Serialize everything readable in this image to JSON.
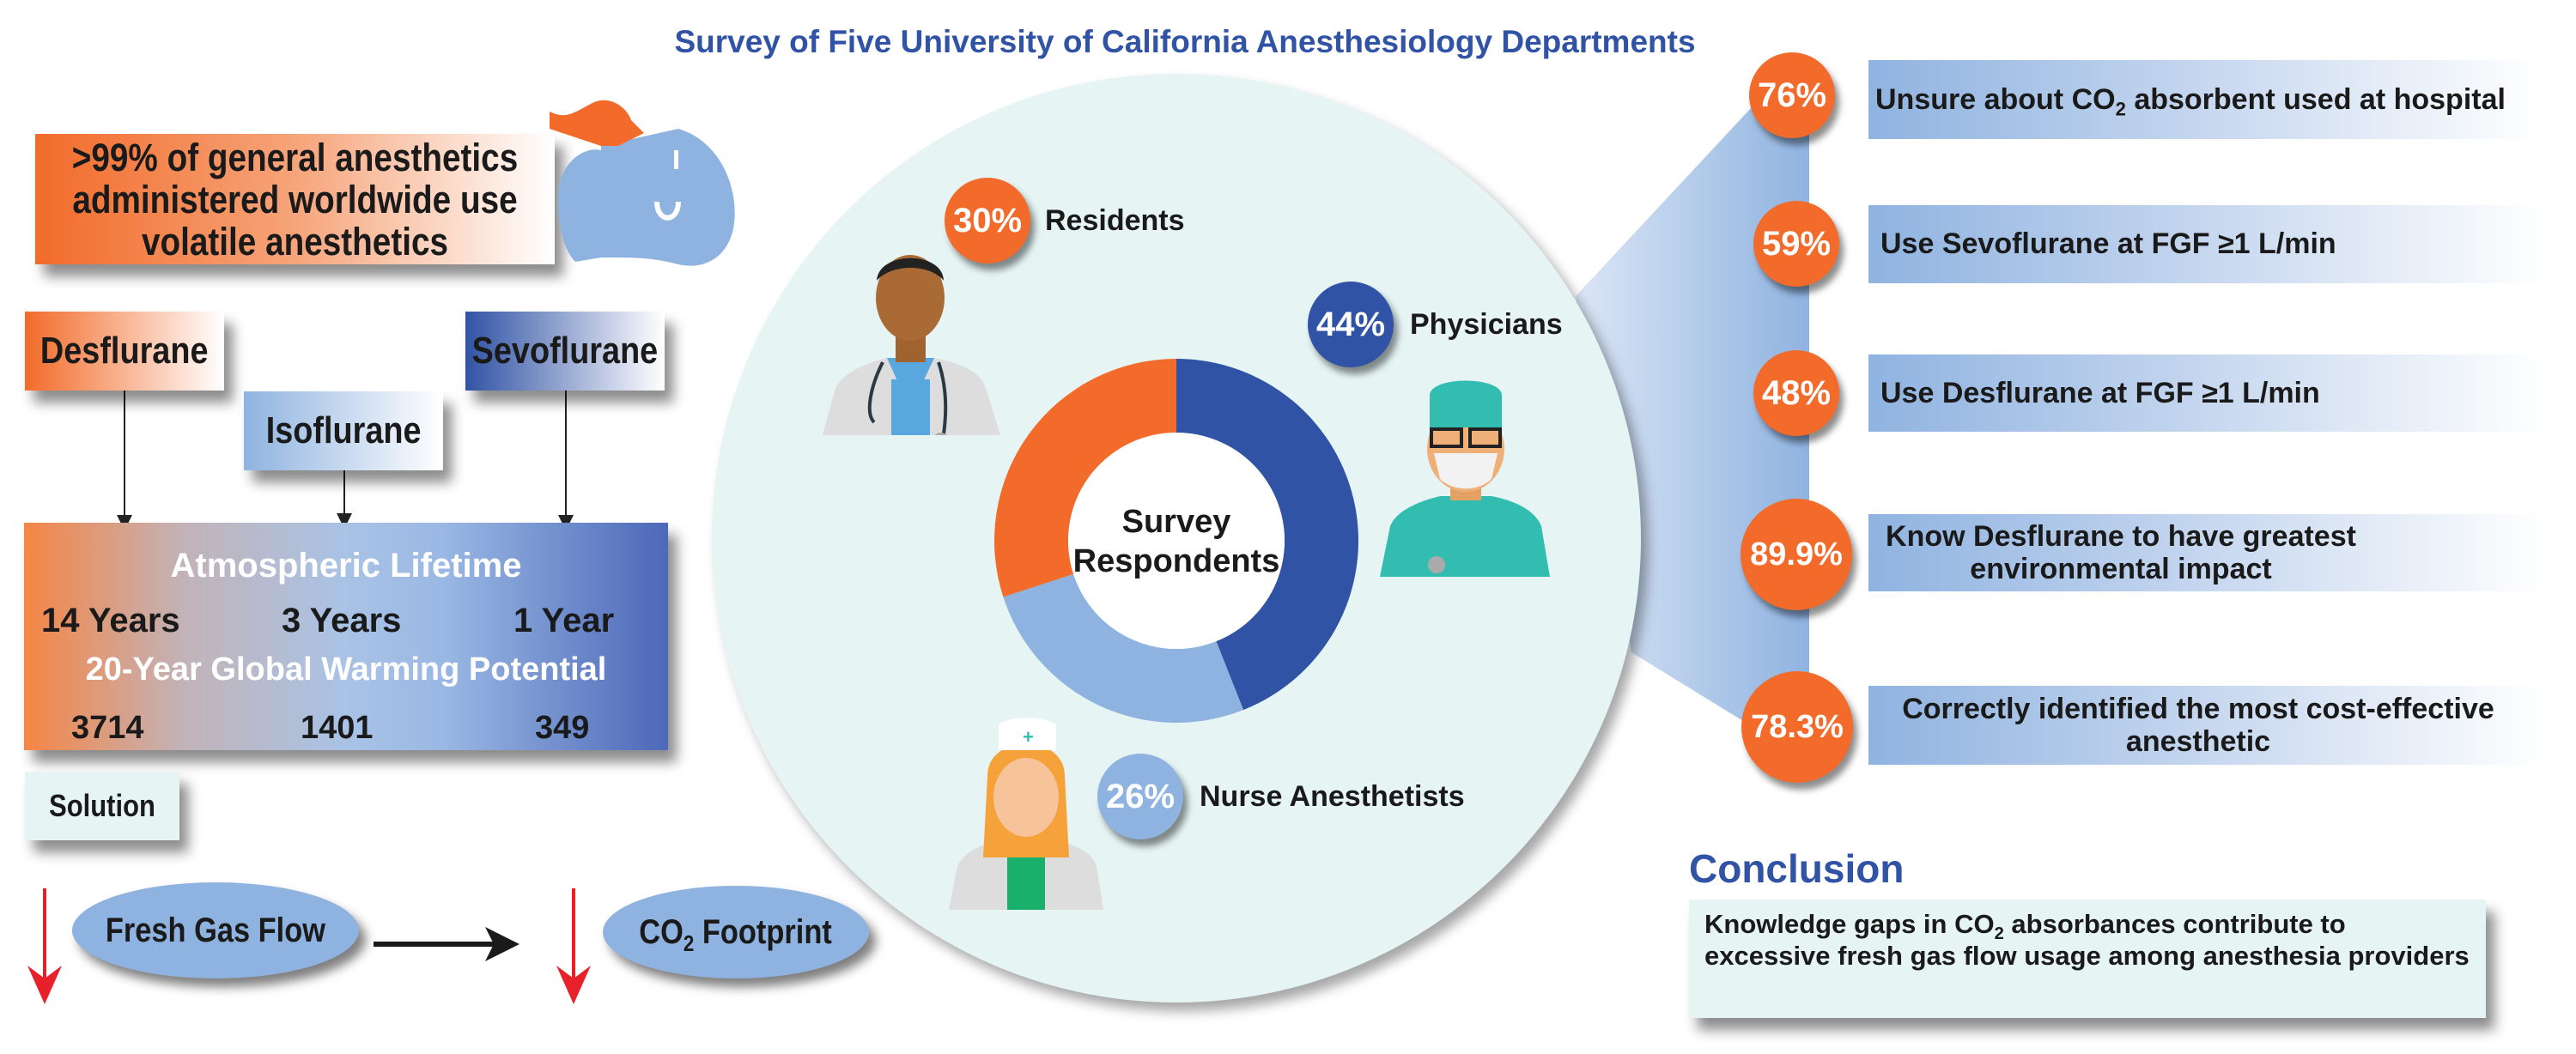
{
  "title": "Survey of Five University of California Anesthesiology Departments",
  "left": {
    "intro": ">99% of general anesthetics administered worldwide use volatile anesthetics",
    "drugs": [
      "Desflurane",
      "Isoflurane",
      "Sevoflurane"
    ],
    "lifetime_title": "Atmospheric Lifetime",
    "lifetimes": [
      "14 Years",
      "3 Years",
      "1 Year"
    ],
    "gwp_title": "20-Year Global Warming Potential",
    "gwp": [
      "3714",
      "1401",
      "349"
    ],
    "solution": "Solution",
    "fresh_gas": "Fresh Gas Flow",
    "co2_pre": "CO",
    "co2_sub": "2",
    "co2_post": "Footprint"
  },
  "survey": {
    "center_line1": "Survey",
    "center_line2": "Respondents",
    "groups": [
      {
        "label": "Physicians",
        "pct": "44%",
        "value": 44,
        "color": "#3153a5"
      },
      {
        "label": "Nurse Anesthetists",
        "pct": "26%",
        "value": 26,
        "color": "#8fb3e0"
      },
      {
        "label": "Residents",
        "pct": "30%",
        "value": 30,
        "color": "#f26b2a"
      }
    ]
  },
  "findings": [
    {
      "pct": "76%",
      "pre": "Unsure about CO",
      "sub": "2",
      "post": " absorbent used at hospital"
    },
    {
      "pct": "59%",
      "pre": "Use Sevoflurane at FGF ≥1 L/min",
      "sub": "",
      "post": ""
    },
    {
      "pct": "48%",
      "pre": "Use Desflurane at FGF ≥1 L/min",
      "sub": "",
      "post": ""
    },
    {
      "pct": "89.9%",
      "pre": "Know Desflurane to have greatest environmental impact",
      "sub": "",
      "post": ""
    },
    {
      "pct": "78.3%",
      "pre": "Correctly identified the most cost-effective anesthetic",
      "sub": "",
      "post": ""
    }
  ],
  "conclusion": {
    "title": "Conclusion",
    "pre": "Knowledge gaps in CO",
    "sub": "2",
    "post": " absorbances contribute to excessive fresh gas flow usage among anesthesia providers"
  },
  "colors": {
    "orange": "#f26b2a",
    "navy": "#3153a5",
    "light_blue": "#8fb3e0",
    "mint": "#e6f4f4"
  }
}
